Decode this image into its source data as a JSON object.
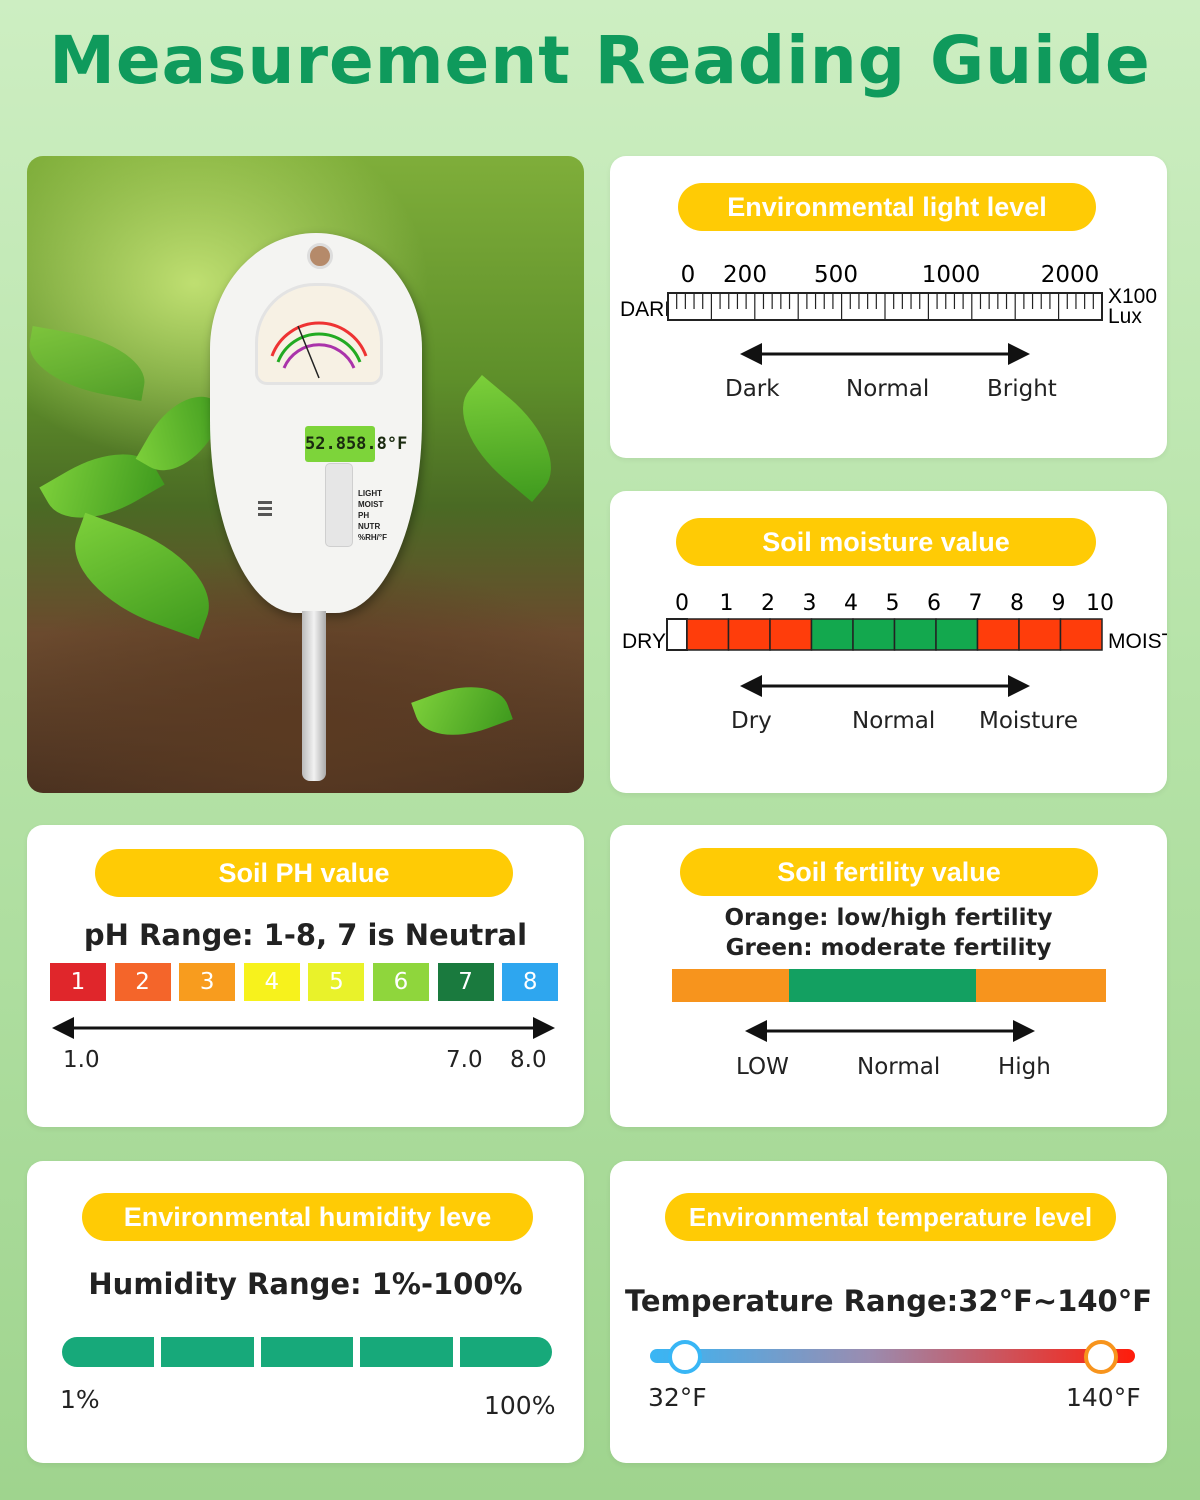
{
  "page_title": "Measurement Reading Guide",
  "meter": {
    "lcd": "52.858.8°F",
    "modes": [
      "LIGHT",
      "MOIST",
      "PH",
      "NUTR",
      "%RH/°F"
    ]
  },
  "light": {
    "title": "Environmental light level",
    "left_label": "DARK",
    "unit_line1": "X100",
    "unit_line2": "Lux",
    "ticks": [
      "0",
      "200",
      "500",
      "1000",
      "2000"
    ],
    "arrow_labels": [
      "Dark",
      "Normal",
      "Bright"
    ]
  },
  "moisture": {
    "title": "Soil moisture value",
    "left_label": "DRY",
    "right_label": "MOIST",
    "ticks": [
      "0",
      "1",
      "2",
      "3",
      "4",
      "5",
      "6",
      "7",
      "8",
      "9",
      "10"
    ],
    "segment_colors": [
      "#ff3d0b",
      "#ff3d0b",
      "#ff3d0b",
      "#13a84e",
      "#13a84e",
      "#13a84e",
      "#13a84e",
      "#ff3d0b",
      "#ff3d0b",
      "#ff3d0b"
    ],
    "arrow_labels": [
      "Dry",
      "Normal",
      "Moisture"
    ]
  },
  "ph": {
    "title": "Soil PH value",
    "range_text": "pH Range: 1-8, 7 is Neutral",
    "boxes": [
      {
        "label": "1",
        "color": "#e0262b"
      },
      {
        "label": "2",
        "color": "#f4652a"
      },
      {
        "label": "3",
        "color": "#f89c1e"
      },
      {
        "label": "4",
        "color": "#f7f21c"
      },
      {
        "label": "5",
        "color": "#e9f22a"
      },
      {
        "label": "6",
        "color": "#8fd63c"
      },
      {
        "label": "7",
        "color": "#1a7a3e"
      },
      {
        "label": "8",
        "color": "#2ea6ef"
      }
    ],
    "scale_labels": [
      "1.0",
      "7.0",
      "8.0"
    ]
  },
  "fertility": {
    "title": "Soil fertility value",
    "line1": "Orange: low/high fertility",
    "line2": "Green: moderate fertility",
    "colors": {
      "low_high": "#f7941d",
      "moderate": "#13a061"
    },
    "arrow_labels": [
      "LOW",
      "Normal",
      "High"
    ]
  },
  "humidity": {
    "title": "Environmental humidity leve",
    "range_text": "Humidity Range: 1%-100%",
    "min_label": "1%",
    "max_label": "100%",
    "bar_color": "#17a97a"
  },
  "temperature": {
    "title": "Environmental temperature level",
    "range_text": "Temperature Range:32°F~140°F",
    "min_label": "32°F",
    "max_label": "140°F",
    "gradient": [
      "#38b6f5",
      "#ff1c0a"
    ]
  },
  "colors": {
    "title_green": "#0f9a5c",
    "pill_yellow": "#ffcb05"
  }
}
